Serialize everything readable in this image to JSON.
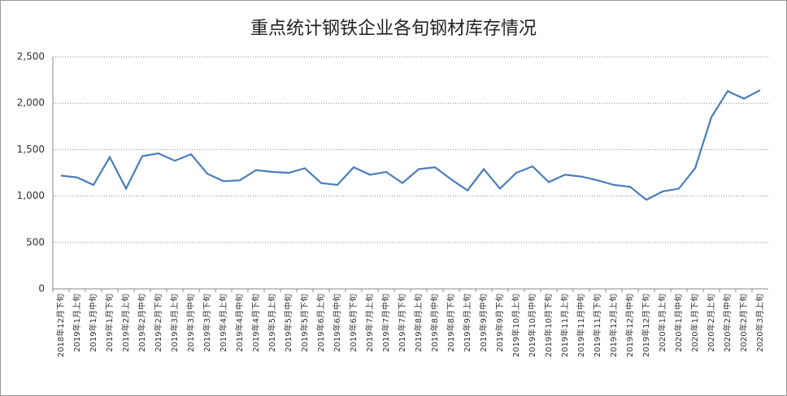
{
  "chart_data": {
    "type": "line",
    "title": "重点统计钢铁企业各旬钢材库存情况",
    "categories": [
      "2018年12月下旬",
      "2019年1月上旬",
      "2019年1月中旬",
      "2019年1月下旬",
      "2019年2月上旬",
      "2019年2月中旬",
      "2019年2月下旬",
      "2019年3月上旬",
      "2019年3月中旬",
      "2019年3月下旬",
      "2019年4月上旬",
      "2019年4月中旬",
      "2019年4月下旬",
      "2019年5月上旬",
      "2019年5月中旬",
      "2019年5月下旬",
      "2019年6月上旬",
      "2019年6月中旬",
      "2019年6月下旬",
      "2019年7月上旬",
      "2019年7月中旬",
      "2019年7月下旬",
      "2019年8月上旬",
      "2019年8月中旬",
      "2019年8月下旬",
      "2019年9月上旬",
      "2019年9月中旬",
      "2019年9月下旬",
      "2019年10月上旬",
      "2019年10月中旬",
      "2019年10月下旬",
      "2019年11月上旬",
      "2019年11月中旬",
      "2019年11月下旬",
      "2019年12月上旬",
      "2019年12月中旬",
      "2019年12月下旬",
      "2020年1月上旬",
      "2020年1月中旬",
      "2020年1月下旬",
      "2020年2月上旬",
      "2020年2月中旬",
      "2020年2月下旬",
      "2020年3月上旬"
    ],
    "values": [
      1220,
      1200,
      1120,
      1420,
      1080,
      1430,
      1460,
      1380,
      1450,
      1240,
      1160,
      1170,
      1280,
      1260,
      1250,
      1300,
      1140,
      1120,
      1310,
      1230,
      1260,
      1140,
      1290,
      1310,
      1180,
      1060,
      1290,
      1080,
      1250,
      1320,
      1150,
      1230,
      1210,
      1170,
      1120,
      1100,
      960,
      1050,
      1080,
      1300,
      1850,
      2130,
      2050,
      2140
    ],
    "color": "#4a7ebb",
    "ylim": [
      0,
      2500
    ],
    "yticks": [
      0,
      500,
      {
        "value": 1000,
        "label": "1,000"
      },
      {
        "value": 1500,
        "label": "1,500"
      },
      {
        "value": 2000,
        "label": "2,000"
      },
      {
        "value": 2500,
        "label": "2,500"
      }
    ],
    "grid": true
  }
}
